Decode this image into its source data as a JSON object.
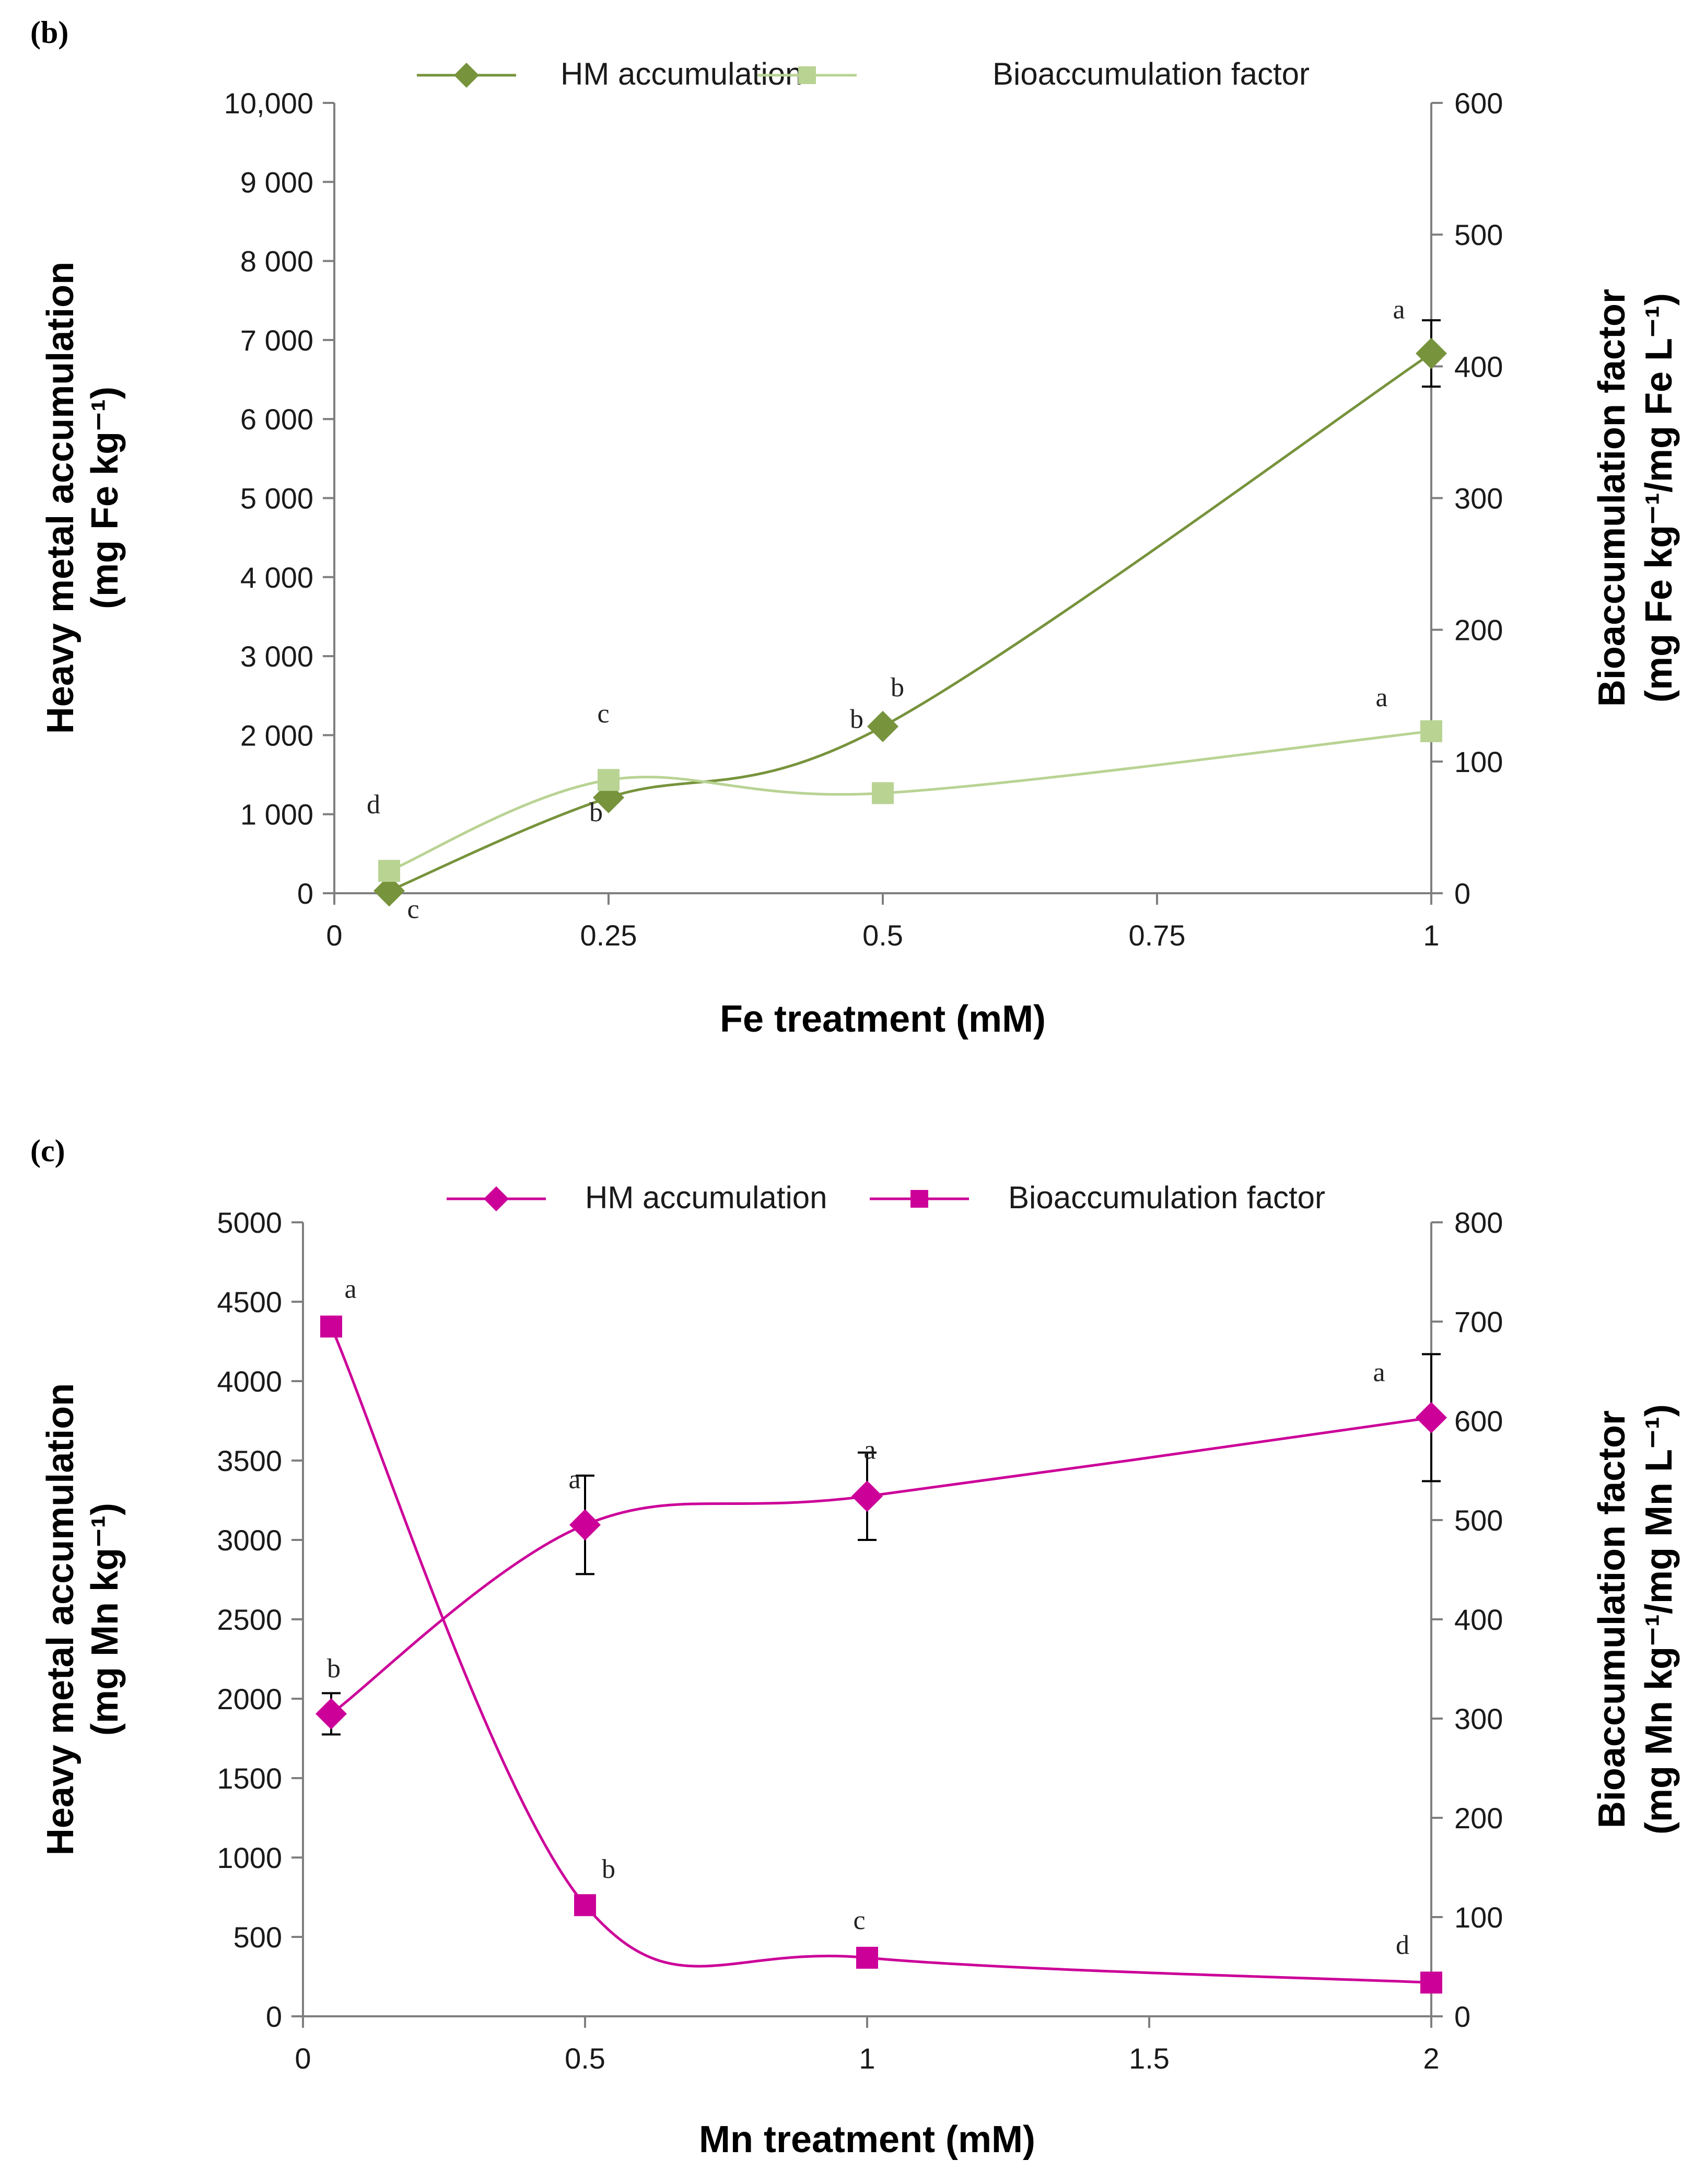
{
  "chart_data": [
    {
      "panel": "(b)",
      "type": "line",
      "xlabel": "Fe treatment (mM)",
      "ylabel_lines": [
        "Heavy metal accumulation",
        "(mg Fe kg⁻¹)"
      ],
      "y2label_lines": [
        "Bioaccumulation factor",
        "(mg Fe kg⁻¹/mg Fe L⁻¹)"
      ],
      "xlim": [
        0,
        1
      ],
      "xticks": [
        0,
        0.25,
        0.5,
        0.75,
        1
      ],
      "xtick_labels": [
        "0",
        "0.25",
        "0.5",
        "0.75",
        "1"
      ],
      "ylim": [
        0,
        10000
      ],
      "yticks": [
        0,
        1000,
        2000,
        3000,
        4000,
        5000,
        6000,
        7000,
        8000,
        9000,
        10000
      ],
      "ytick_labels": [
        "0",
        "1 000",
        "2 000",
        "3 000",
        "4 000",
        "5 000",
        "6 000",
        "7 000",
        "8 000",
        "9 000",
        "10,000"
      ],
      "y2lim": [
        0,
        600
      ],
      "y2ticks": [
        0,
        100,
        200,
        300,
        400,
        500,
        600
      ],
      "y2tick_labels": [
        "0",
        "100",
        "200",
        "300",
        "400",
        "500",
        "600"
      ],
      "series": [
        {
          "name": "HM accumulation",
          "axis": "left",
          "marker": "diamond",
          "color": "#77933c",
          "x": [
            0.05,
            0.25,
            0.5,
            1
          ],
          "values": [
            30,
            1210,
            2110,
            6830
          ],
          "errors": [
            0,
            0,
            0,
            420
          ],
          "labels": [
            "c",
            "b",
            "b",
            "a"
          ]
        },
        {
          "name": "Bioaccumulation factor",
          "axis": "right",
          "marker": "square",
          "color": "#b9d393",
          "x": [
            0.05,
            0.25,
            0.5,
            1
          ],
          "values": [
            17,
            86,
            76,
            123
          ],
          "errors": [
            0,
            0,
            0,
            0
          ],
          "labels": [
            "d",
            "c",
            "b",
            "a"
          ]
        }
      ]
    },
    {
      "panel": "(c)",
      "type": "line",
      "xlabel": "Mn treatment (mM)",
      "ylabel_lines": [
        "Heavy metal accumulation",
        "(mg Mn kg⁻¹)"
      ],
      "y2label_lines": [
        "Bioaccumulation factor",
        "(mg Mn kg⁻¹/mg Mn L⁻¹)"
      ],
      "xlim": [
        0,
        2
      ],
      "xticks": [
        0,
        0.5,
        1,
        1.5,
        2
      ],
      "xtick_labels": [
        "0",
        "0.5",
        "1",
        "1.5",
        "2"
      ],
      "ylim": [
        0,
        5000
      ],
      "yticks": [
        0,
        500,
        1000,
        1500,
        2000,
        2500,
        3000,
        3500,
        4000,
        4500,
        5000
      ],
      "ytick_labels": [
        "0",
        "500",
        "1000",
        "1500",
        "2000",
        "2500",
        "3000",
        "3500",
        "4000",
        "4500",
        "5000"
      ],
      "y2lim": [
        0,
        800
      ],
      "y2ticks": [
        0,
        100,
        200,
        300,
        400,
        500,
        600,
        700,
        800
      ],
      "y2tick_labels": [
        "0",
        "100",
        "200",
        "300",
        "400",
        "500",
        "600",
        "700",
        "800"
      ],
      "series": [
        {
          "name": "HM accumulation",
          "axis": "left",
          "marker": "diamond",
          "color": "#cc0099",
          "x": [
            0.05,
            0.5,
            1,
            2
          ],
          "values": [
            1905,
            3095,
            3275,
            3770
          ],
          "errors": [
            130,
            310,
            275,
            400
          ],
          "labels": [
            "b",
            "a",
            "a",
            "a"
          ]
        },
        {
          "name": "Bioaccumulation factor",
          "axis": "right",
          "marker": "square",
          "color": "#cc0099",
          "x": [
            0.05,
            0.5,
            1,
            2
          ],
          "values": [
            695,
            112,
            59,
            34
          ],
          "errors": [
            0,
            0,
            0,
            0
          ],
          "labels": [
            "a",
            "b",
            "c",
            "d"
          ]
        }
      ]
    }
  ]
}
